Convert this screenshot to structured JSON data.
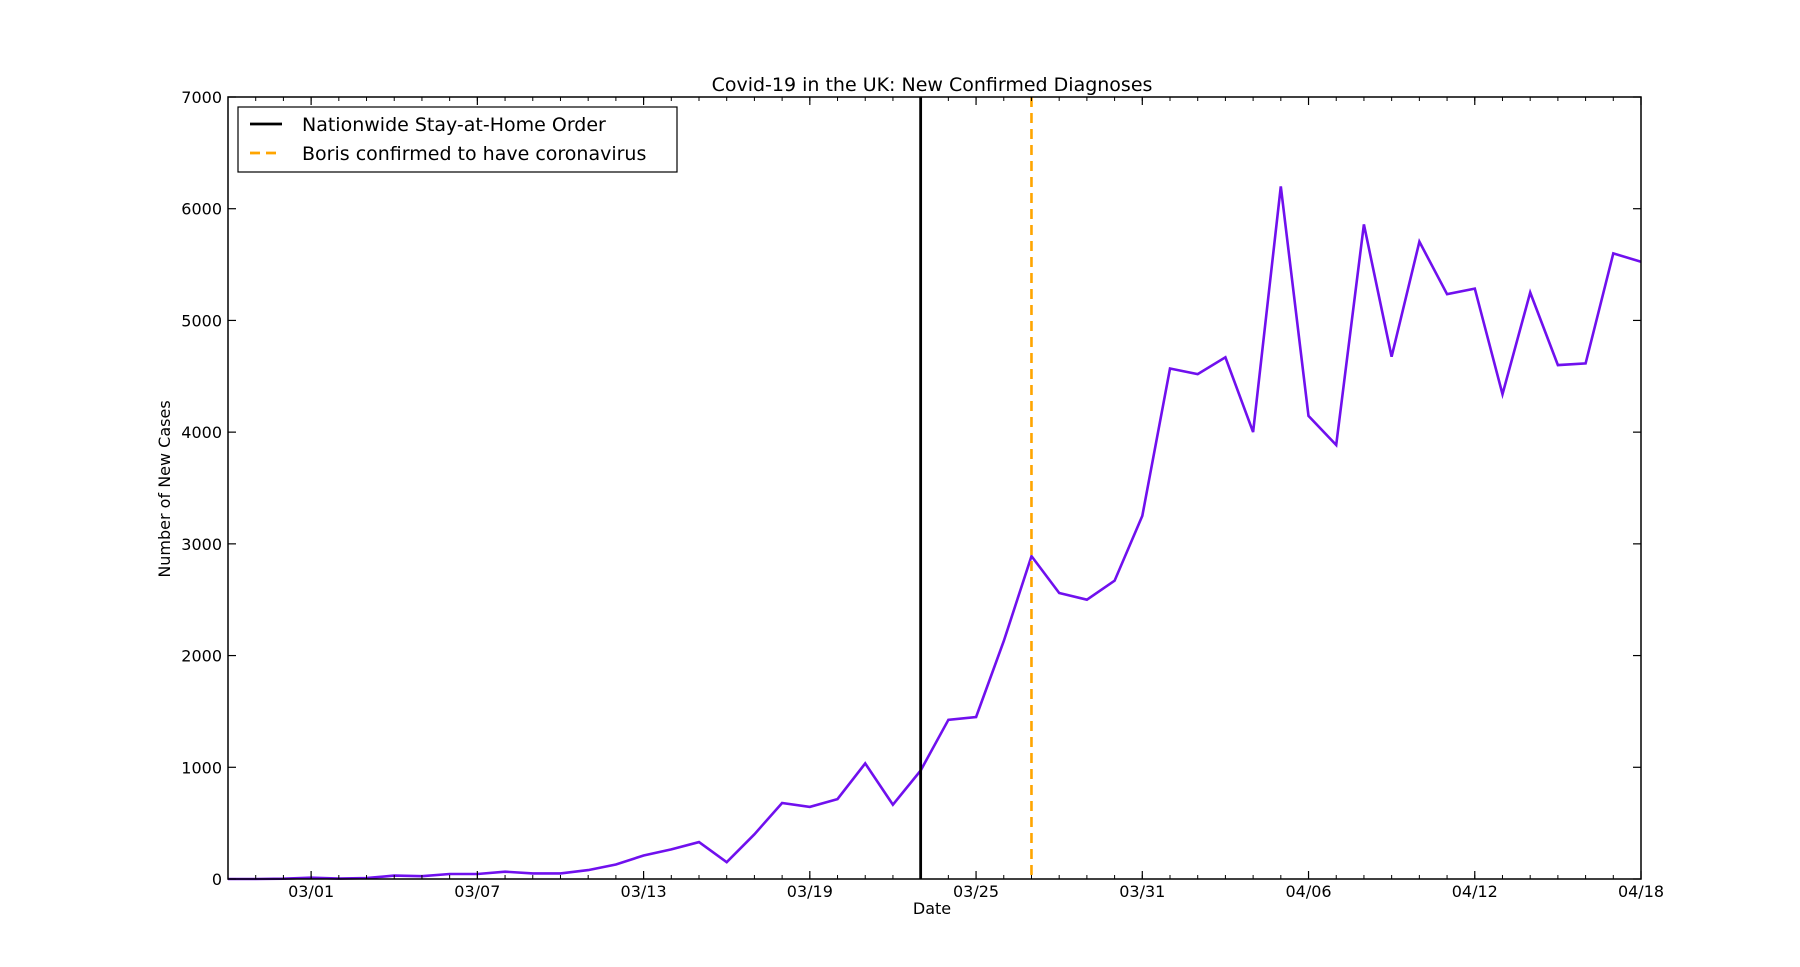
{
  "chart_data": {
    "type": "line",
    "title": "Covid-19 in the UK: New Confirmed Diagnoses",
    "xlabel": "Date",
    "ylabel": "Number of New Cases",
    "ylim": [
      0,
      7000
    ],
    "yticks": [
      0,
      1000,
      2000,
      3000,
      4000,
      5000,
      6000,
      7000
    ],
    "xticks": [
      "03/01",
      "03/07",
      "03/13",
      "03/19",
      "03/25",
      "03/31",
      "04/06",
      "04/12",
      "04/18"
    ],
    "xlim": [
      "02/27",
      "04/18"
    ],
    "x": [
      "02/27",
      "02/28",
      "02/29",
      "03/01",
      "03/02",
      "03/03",
      "03/04",
      "03/05",
      "03/06",
      "03/07",
      "03/08",
      "03/09",
      "03/10",
      "03/11",
      "03/12",
      "03/13",
      "03/14",
      "03/15",
      "03/16",
      "03/17",
      "03/18",
      "03/19",
      "03/20",
      "03/21",
      "03/22",
      "03/23",
      "03/24",
      "03/25",
      "03/26",
      "03/27",
      "03/28",
      "03/29",
      "03/30",
      "03/31",
      "04/01",
      "04/02",
      "04/03",
      "04/04",
      "04/05",
      "04/06",
      "04/07",
      "04/08",
      "04/09",
      "04/10",
      "04/11",
      "04/12",
      "04/13",
      "04/14",
      "04/15",
      "04/16",
      "04/17",
      "04/18"
    ],
    "series": [
      {
        "color": "#7010ee",
        "values": [
          0,
          0,
          3,
          12,
          4,
          8,
          30,
          25,
          45,
          45,
          65,
          50,
          50,
          80,
          130,
          210,
          265,
          330,
          150,
          400,
          680,
          645,
          715,
          1035,
          665,
          970,
          1425,
          1450,
          2130,
          2890,
          2560,
          2500,
          2670,
          3250,
          4570,
          4520,
          4670,
          4000,
          6200,
          4145,
          3885,
          5860,
          4675,
          5705,
          5235,
          5285,
          4340,
          5250,
          4600,
          4615,
          5600,
          5525
        ]
      }
    ],
    "events": [
      {
        "label": "Nationwide Stay-at-Home Order",
        "date": "03/23",
        "color": "#000000",
        "style": "solid"
      },
      {
        "label": "Boris confirmed to have coronavirus",
        "date": "03/27",
        "color": "#ffa500",
        "style": "dashed"
      }
    ],
    "legend_position": "top-left",
    "grid": false
  }
}
